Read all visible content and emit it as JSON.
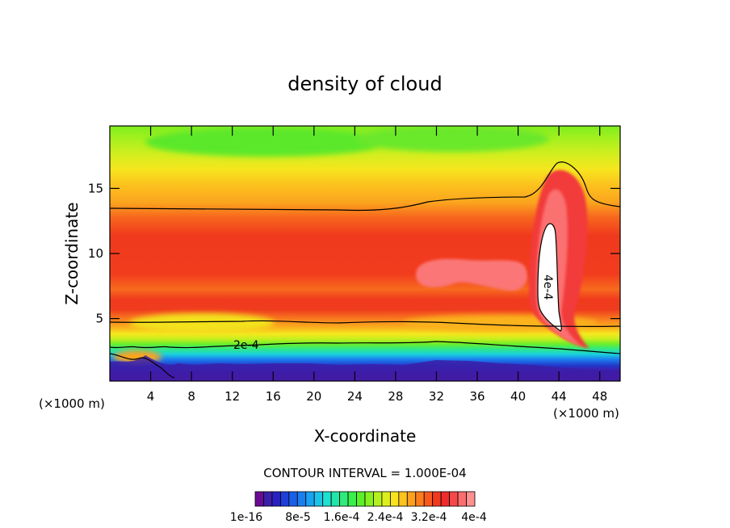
{
  "chart_data": {
    "type": "heatmap",
    "title": "density of cloud",
    "xlabel": "X-coordinate",
    "ylabel": "Z-coordinate",
    "x_unit_left": "(×1000 m)",
    "x_unit_right": "(×1000 m)",
    "x_ticks": [
      4,
      8,
      12,
      16,
      20,
      24,
      28,
      32,
      36,
      40,
      44,
      48
    ],
    "y_ticks": [
      5,
      10,
      15
    ],
    "xlim": [
      0,
      50
    ],
    "ylim": [
      0.2,
      19.8
    ],
    "contour_interval_text": "CONTOUR INTERVAL = 1.000E-04",
    "contour_labels": [
      {
        "text": "2e-4",
        "x": 14,
        "z": 2.8
      },
      {
        "text": "4e-4",
        "x": 43.5,
        "z": 6.5
      }
    ],
    "colorbar": {
      "colors": [
        "#6a0b95",
        "#3b1fa8",
        "#2a22c0",
        "#1f3fd8",
        "#1a5fe8",
        "#1a80f0",
        "#1aa3f0",
        "#1ac4e8",
        "#1de0d0",
        "#22e6a8",
        "#30ea7a",
        "#3aee4c",
        "#5af02a",
        "#88f01e",
        "#b5f01e",
        "#dcee1e",
        "#f7e41e",
        "#fcc21e",
        "#fca01e",
        "#fb7d1e",
        "#f85a1e",
        "#f03a1e",
        "#ee2c2c",
        "#f54848",
        "#fb6e6e",
        "#ff9090"
      ],
      "labels": [
        "1e-16",
        "8e-5",
        "1.6e-4",
        "2.4e-4",
        "3.2e-4",
        "4e-4"
      ]
    }
  }
}
